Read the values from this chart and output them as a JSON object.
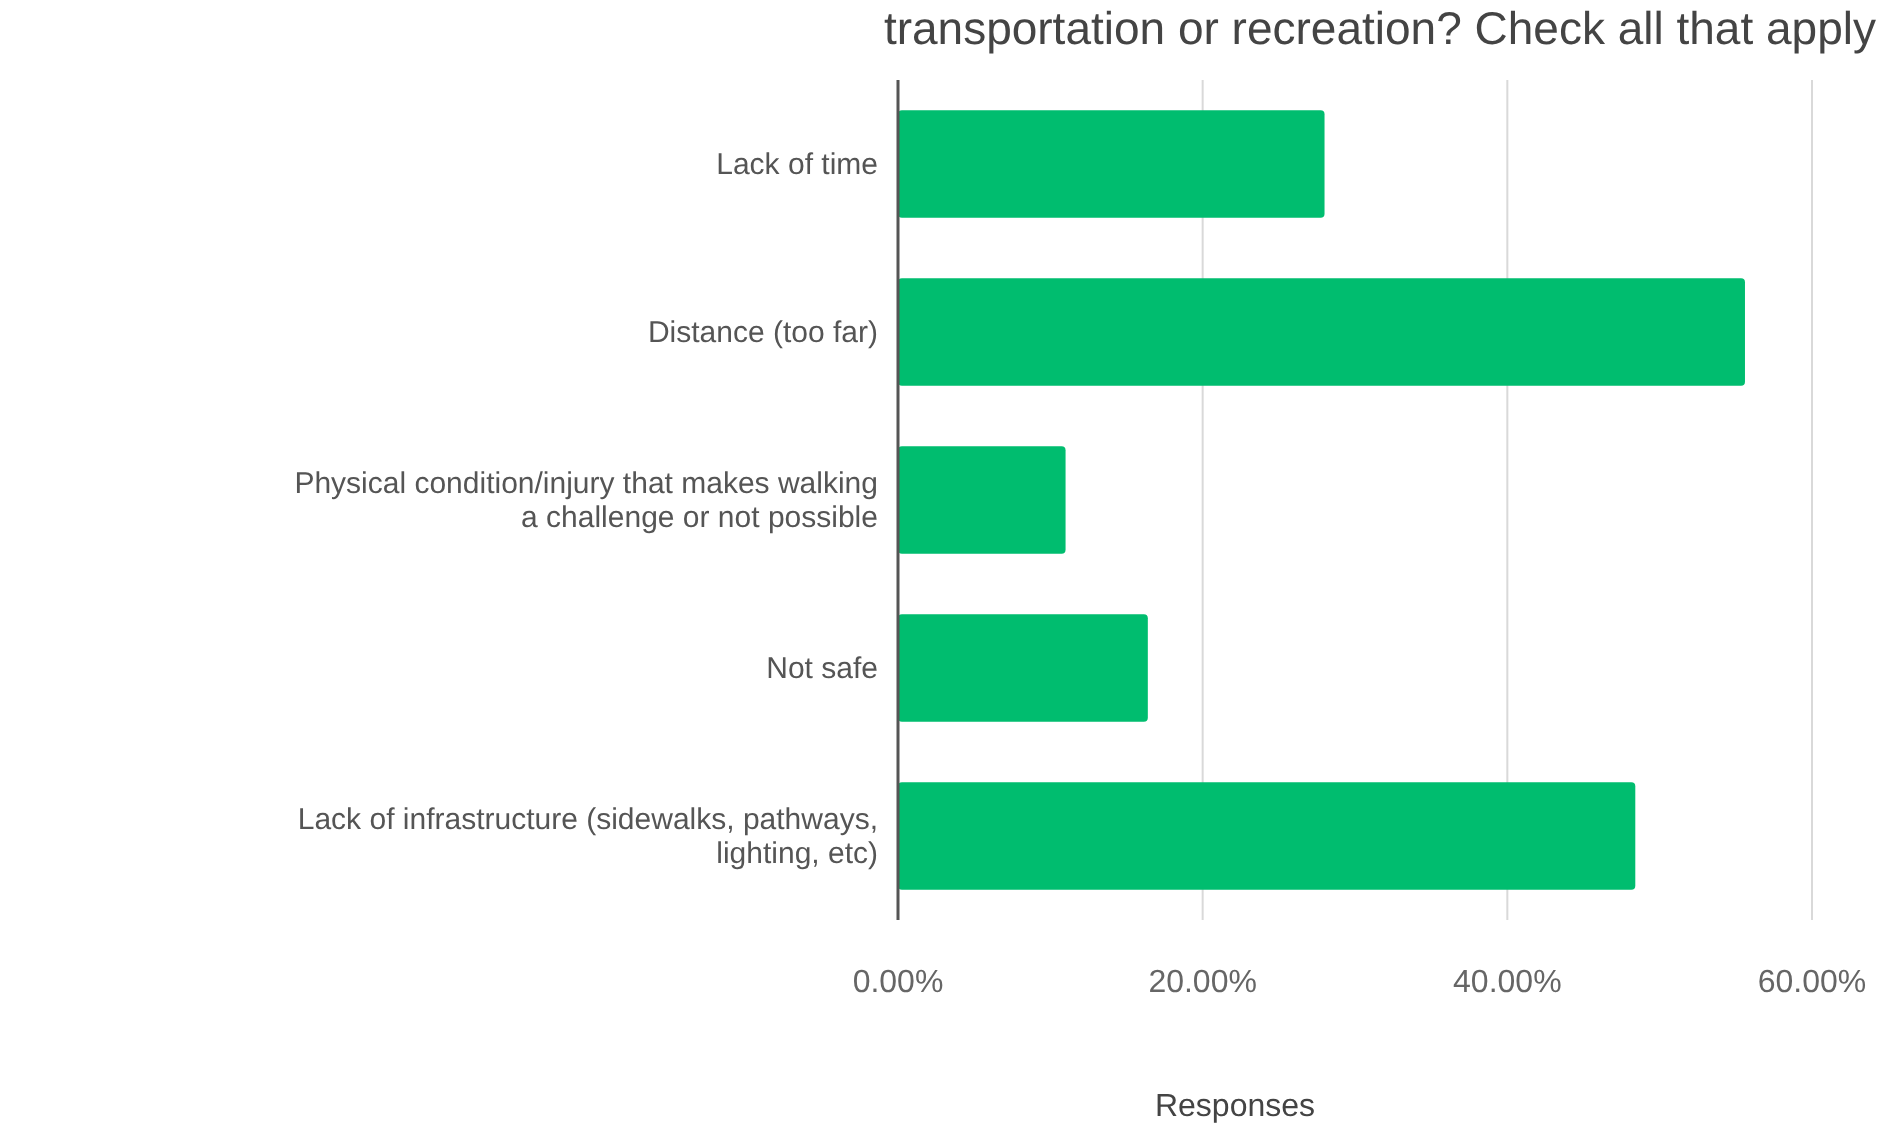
{
  "chart_data": {
    "type": "bar",
    "orientation": "horizontal",
    "title": "transportation or recreation? Check all that apply",
    "categories": [
      "Lack of time",
      "Distance (too far)",
      "Physical condition/injury that makes walking a challenge or not possible",
      "Not safe",
      "Lack of infrastructure (sidewalks, pathways, lighting, etc)"
    ],
    "values": [
      28,
      55.6,
      11,
      16.4,
      48.4
    ],
    "color": "#00bd6f",
    "xlim": [
      0,
      60
    ],
    "xticks": [
      {
        "value": 0,
        "label": "0.00%"
      },
      {
        "value": 20,
        "label": "20.00%"
      },
      {
        "value": 40,
        "label": "40.00%"
      },
      {
        "value": 60,
        "label": "60.00%"
      }
    ],
    "xlabel": "Responses",
    "grid": "x"
  }
}
